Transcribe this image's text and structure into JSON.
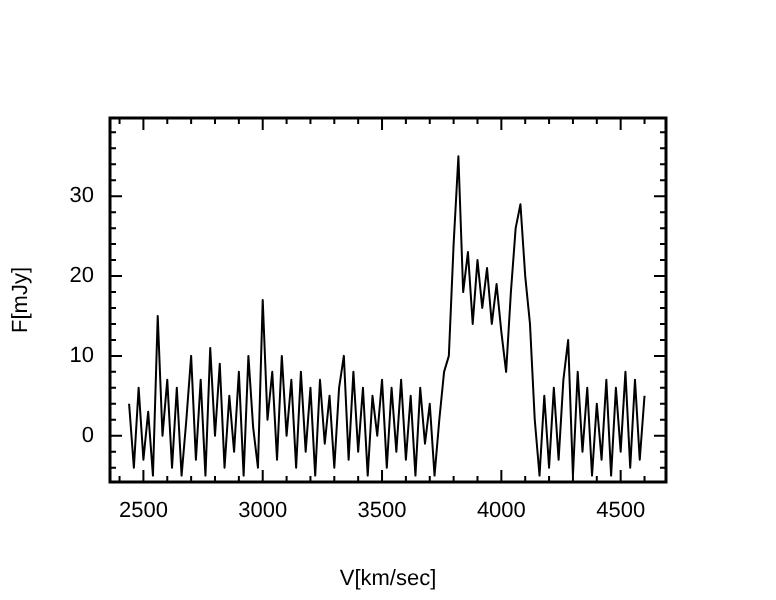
{
  "chart_data": {
    "type": "line",
    "xlabel": "V[km/sec]",
    "ylabel": "F[mJy]",
    "xlim": [
      2360,
      4690
    ],
    "ylim": [
      -5.8,
      39.8
    ],
    "xticks": [
      {
        "value": 2400,
        "label": null
      },
      2500,
      {
        "value": 2600,
        "label": null
      },
      {
        "value": 2700,
        "label": null
      },
      {
        "value": 2800,
        "label": null
      },
      {
        "value": 2900,
        "label": null
      },
      3000,
      {
        "value": 3100,
        "label": null
      },
      {
        "value": 3200,
        "label": null
      },
      {
        "value": 3300,
        "label": null
      },
      {
        "value": 3400,
        "label": null
      },
      3500,
      {
        "value": 3600,
        "label": null
      },
      {
        "value": 3700,
        "label": null
      },
      {
        "value": 3800,
        "label": null
      },
      {
        "value": 3900,
        "label": null
      },
      4000,
      {
        "value": 4100,
        "label": null
      },
      {
        "value": 4200,
        "label": null
      },
      {
        "value": 4300,
        "label": null
      },
      {
        "value": 4400,
        "label": null
      },
      4500,
      {
        "value": 4600,
        "label": null
      }
    ],
    "yticks": [
      {
        "value": -4,
        "label": null
      },
      {
        "value": -2,
        "label": null
      },
      0,
      {
        "value": 2,
        "label": null
      },
      {
        "value": 4,
        "label": null
      },
      {
        "value": 6,
        "label": null
      },
      {
        "value": 8,
        "label": null
      },
      10,
      {
        "value": 12,
        "label": null
      },
      {
        "value": 14,
        "label": null
      },
      {
        "value": 16,
        "label": null
      },
      {
        "value": 18,
        "label": null
      },
      20,
      {
        "value": 22,
        "label": null
      },
      {
        "value": 24,
        "label": null
      },
      {
        "value": 26,
        "label": null
      },
      {
        "value": 28,
        "label": null
      },
      30,
      {
        "value": 32,
        "label": null
      },
      {
        "value": 34,
        "label": null
      },
      {
        "value": 36,
        "label": null
      },
      {
        "value": 38,
        "label": null
      }
    ],
    "grid": false,
    "legend": false,
    "marker": "none",
    "line_style": "solid",
    "series": [
      {
        "color": "#000000",
        "x": [
          2440,
          2460,
          2480,
          2500,
          2520,
          2540,
          2560,
          2580,
          2600,
          2620,
          2640,
          2660,
          2680,
          2700,
          2720,
          2740,
          2760,
          2780,
          2800,
          2820,
          2840,
          2860,
          2880,
          2900,
          2920,
          2940,
          2960,
          2980,
          3000,
          3020,
          3040,
          3060,
          3080,
          3100,
          3120,
          3140,
          3160,
          3180,
          3200,
          3220,
          3240,
          3260,
          3280,
          3300,
          3320,
          3340,
          3360,
          3380,
          3400,
          3420,
          3440,
          3460,
          3480,
          3500,
          3520,
          3540,
          3560,
          3580,
          3600,
          3620,
          3640,
          3660,
          3680,
          3700,
          3720,
          3740,
          3760,
          3780,
          3800,
          3820,
          3840,
          3860,
          3880,
          3900,
          3920,
          3940,
          3960,
          3980,
          4000,
          4020,
          4040,
          4060,
          4080,
          4100,
          4120,
          4140,
          4160,
          4180,
          4200,
          4220,
          4240,
          4260,
          4280,
          4300,
          4320,
          4340,
          4360,
          4380,
          4400,
          4420,
          4440,
          4460,
          4480,
          4500,
          4520,
          4540,
          4560,
          4580,
          4600
        ],
        "values": [
          4,
          -4,
          6,
          -3,
          3,
          -5,
          15,
          0,
          7,
          -4,
          6,
          -5,
          2,
          10,
          -3,
          7,
          -5,
          11,
          0,
          9,
          -4,
          5,
          -2,
          8,
          -5,
          10,
          1,
          -4,
          17,
          2,
          8,
          -3,
          10,
          0,
          7,
          -4,
          8,
          -2,
          6,
          -5,
          7,
          -1,
          5,
          -4,
          6,
          10,
          -3,
          8,
          -2,
          6,
          -5,
          5,
          0,
          7,
          -4,
          6,
          -2,
          7,
          -3,
          5,
          -5,
          6,
          -1,
          4,
          -5,
          2,
          8,
          10,
          24,
          35,
          18,
          23,
          14,
          22,
          16,
          21,
          14,
          19,
          13,
          8,
          18,
          26,
          29,
          20,
          14,
          2,
          -5,
          5,
          -4,
          6,
          -3,
          7,
          12,
          -5,
          8,
          -2,
          6,
          -5,
          4,
          -3,
          7,
          -5,
          6,
          -2,
          8,
          -4,
          7,
          -3,
          5
        ]
      }
    ]
  }
}
